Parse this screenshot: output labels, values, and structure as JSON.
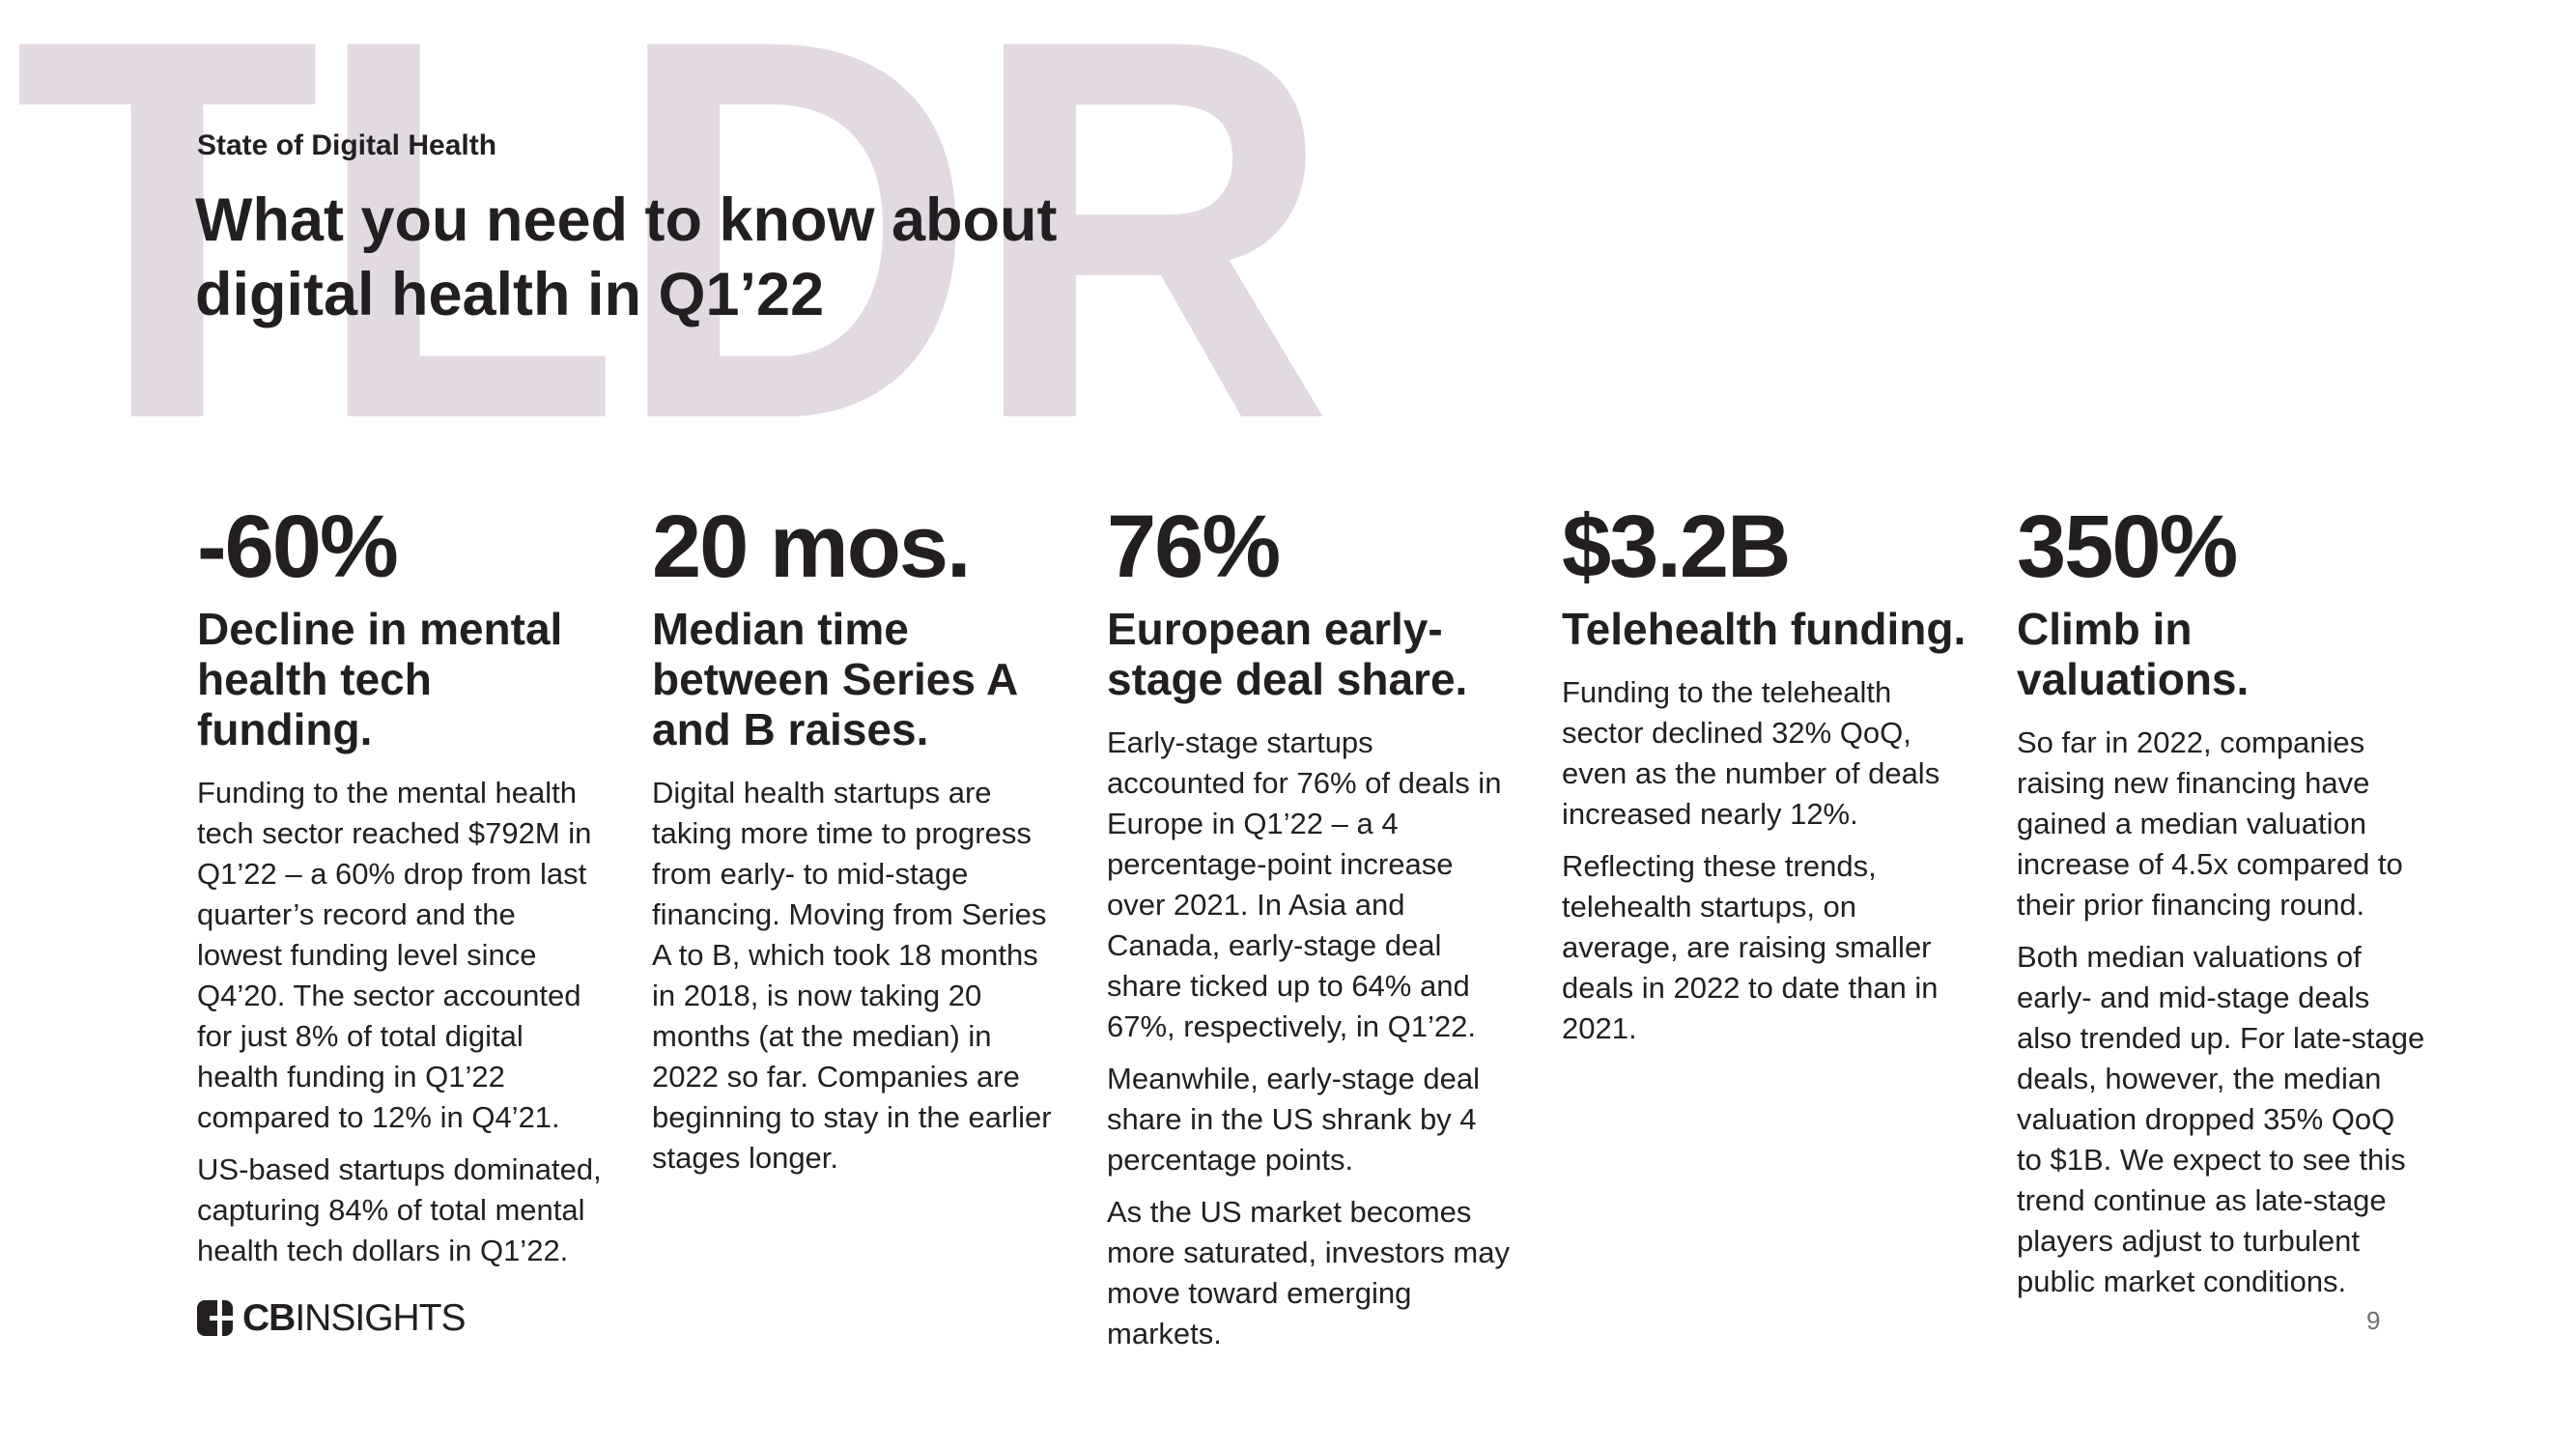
{
  "page": {
    "watermark": "TLDR",
    "watermark_color": "#e3d9e3",
    "text_color": "#231f20",
    "eyebrow": "State of Digital Health",
    "title_line1": "What you need to know about",
    "title_line2": "digital health in Q1’22",
    "page_number": "9"
  },
  "logo": {
    "cb": "CB",
    "insights": "INSIGHTS"
  },
  "columns": [
    {
      "stat": "-60%",
      "heading": "Decline in mental health tech funding.",
      "paragraphs": [
        "Funding to the mental health tech sector reached $792M in Q1’22 – a 60% drop from last quarter’s record and the lowest funding level since Q4’20. The sector accounted for just 8% of total digital health funding in Q1’22 compared to 12% in Q4’21.",
        "US-based startups dominated, capturing 84% of total mental health tech dollars in Q1’22."
      ]
    },
    {
      "stat": "20 mos.",
      "heading": "Median time between Series A and B raises.",
      "paragraphs": [
        "Digital health startups are taking more time to progress from early- to mid-stage financing. Moving from Series A to B, which took 18 months in 2018, is now taking 20 months (at the median) in 2022 so far. Companies are beginning to stay in the earlier stages longer."
      ]
    },
    {
      "stat": "76%",
      "heading": "European early-stage deal share.",
      "paragraphs": [
        "Early-stage startups accounted for 76% of deals in Europe in Q1’22 – a 4 percentage-point increase over 2021. In Asia and Canada, early-stage deal share ticked up to 64% and 67%, respectively, in Q1’22.",
        "Meanwhile, early-stage deal share in the US shrank by 4 percentage points.",
        "As the US market becomes more saturated, investors may move toward emerging markets."
      ]
    },
    {
      "stat": "$3.2B",
      "heading": "Telehealth funding.",
      "paragraphs": [
        "Funding to the telehealth sector declined 32% QoQ, even as the number of deals increased nearly 12%.",
        "Reflecting these trends, telehealth startups, on average, are raising smaller deals in 2022 to date than in 2021."
      ]
    },
    {
      "stat": "350%",
      "heading": "Climb in valuations.",
      "paragraphs": [
        "So far in 2022, companies raising new financing have gained a median valuation increase of 4.5x compared to their prior financing round.",
        "Both median valuations of early- and mid-stage deals also trended up. For late-stage deals, however, the median valuation dropped 35% QoQ to $1B. We expect to see this trend continue as late-stage players adjust to turbulent public market conditions."
      ]
    }
  ]
}
